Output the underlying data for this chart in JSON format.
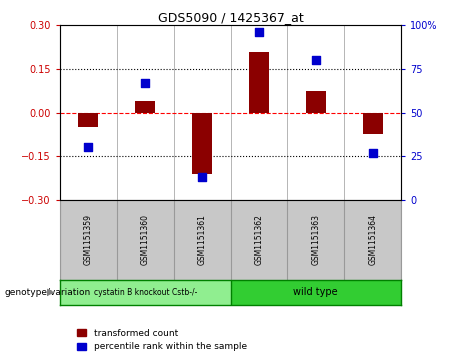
{
  "title": "GDS5090 / 1425367_at",
  "samples": [
    "GSM1151359",
    "GSM1151360",
    "GSM1151361",
    "GSM1151362",
    "GSM1151363",
    "GSM1151364"
  ],
  "transformed_counts": [
    -0.05,
    0.04,
    -0.21,
    0.21,
    0.075,
    -0.075
  ],
  "percentile_ranks": [
    30,
    67,
    13,
    96,
    80,
    27
  ],
  "ylim_left": [
    -0.3,
    0.3
  ],
  "ylim_right": [
    0,
    100
  ],
  "yticks_left": [
    -0.3,
    -0.15,
    0,
    0.15,
    0.3
  ],
  "yticks_right": [
    0,
    25,
    50,
    75,
    100
  ],
  "hline_dotted_vals": [
    0.15,
    -0.15
  ],
  "hline_zero_val": 0,
  "bar_color": "#8B0000",
  "dot_color": "#0000CD",
  "group1_label": "cystatin B knockout Cstb-/-",
  "group2_label": "wild type",
  "group1_color": "#90EE90",
  "group2_color": "#32CD32",
  "group1_indices": [
    0,
    1,
    2
  ],
  "group2_indices": [
    3,
    4,
    5
  ],
  "legend_bar_label": "transformed count",
  "legend_dot_label": "percentile rank within the sample",
  "genotype_label": "genotype/variation",
  "background_color": "#ffffff",
  "left_tick_color": "#CC0000",
  "right_tick_color": "#0000CD",
  "bar_width": 0.35,
  "dot_size": 40,
  "table_bg": "#C8C8C8",
  "table_border": "#999999"
}
